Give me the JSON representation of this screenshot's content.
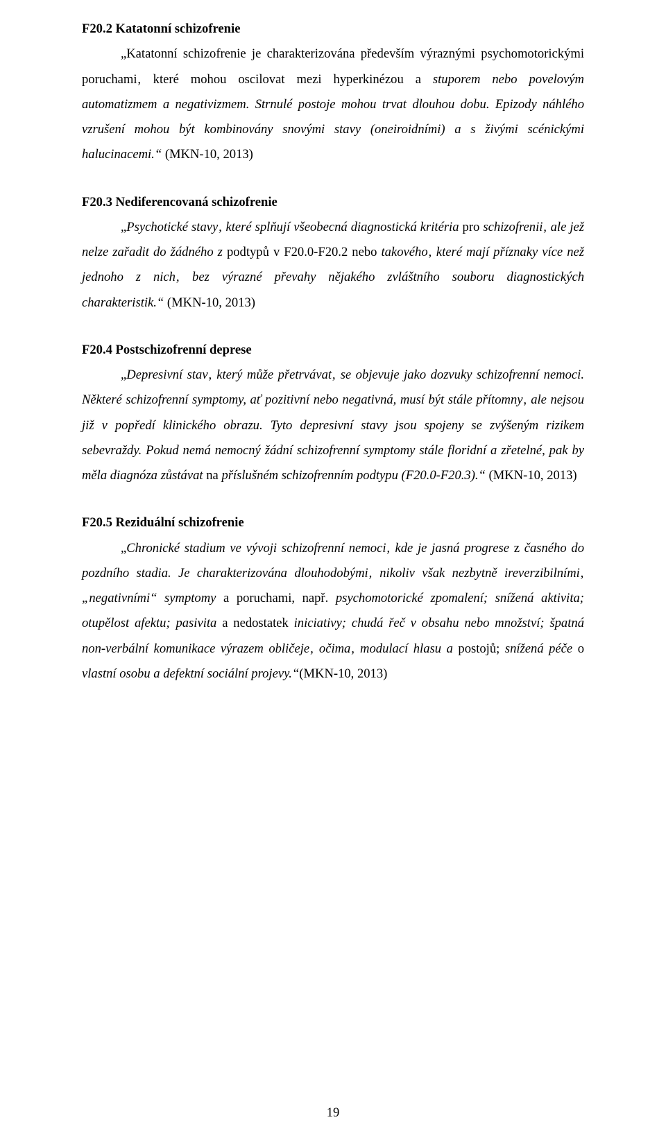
{
  "page_number": "19",
  "sections": [
    {
      "heading": "F20.2 Katatonní schizofrenie",
      "body_plain_start": "„Katatonní schizofrenie je charakterizována především výraznými psychomotorickými poruchami‚ které mohou oscilovat mezi hyperkinézou a ",
      "body_italic_1": "stuporem nebo povelovým automatizmem a negativizmem. Strnulé postoje mohou trvat dlouhou dobu. Epizody náhlého vzrušení mohou být kombinovány snovými stavy (oneiroidními) a s živými scénickými halucinacemi.“",
      "body_plain_end": " (MKN-10, 2013)"
    },
    {
      "heading": "F20.3 Nediferencovaná schizofrenie",
      "body_plain_start": "„",
      "body_italic_1": "Psychotické stavy‚ které splňují všeobecná diagnostická kritéria ",
      "body_plain_mid1": "pro ",
      "body_italic_2": "schizofrenii‚ ale jež nelze zařadit do žádného z ",
      "body_plain_mid2": "podtypů v F20.0-F20.2 nebo ",
      "body_italic_3": "takového‚ které mají příznaky více než jednoho z nich‚ bez výrazné převahy nějakého zvláštního souboru diagnostických charakteristik.“",
      "body_plain_end": " (MKN-10, 2013)"
    },
    {
      "heading": "F20.4 Postschizofrenní deprese",
      "body_plain_start": "„",
      "body_italic_1": "Depresivní stav‚ který může přetrvávat‚ se objevuje jako dozvuky schizofrenní nemoci. Některé schizofrenní symptomy, ať pozitivní nebo negativná, musí být stále přítomny‚ ale nejsou již v popředí klinického obrazu. Tyto depresivní stavy jsou spojeny se zvýšeným rizikem sebevraždy. Pokud nemá nemocný žádní schizofrenní symptomy stále floridní a zřetelné, pak by měla diagnóza zůstávat ",
      "body_plain_mid1": "na ",
      "body_italic_2": "příslušném schizofrenním podtypu (F20.0-F20.3).“",
      "body_plain_end": " (MKN-10, 2013)"
    },
    {
      "heading": "F20.5 Reziduální schizofrenie",
      "body_plain_start": "„",
      "body_italic_1": "Chronické stadium ve vývoji schizofrenní nemoci‚ kde je jasná progrese ",
      "body_plain_mid1": "z ",
      "body_italic_2": "časného do pozdního stadia. Je charakterizována dlouhodobými‚ nikoliv však nezbytně ireverzibilními‚ „negativními“ symptomy ",
      "body_plain_mid2": "a poruchami, např. ",
      "body_italic_3": "psychomotorické zpomalení; snížená aktivita; otupělost afektu; pasivita ",
      "body_plain_mid3": "a nedostatek ",
      "body_italic_4": "iniciativy; chudá řeč v obsahu nebo množství; špatná non-verbální komunikace výrazem obličeje‚ očima‚ modulací hlasu a ",
      "body_plain_mid4": "postojů; ",
      "body_italic_5": "snížená péče ",
      "body_plain_mid5": "o ",
      "body_italic_6": "vlastní osobu a defektní sociální projevy.“",
      "body_plain_end": "(MKN-10, 2013)"
    }
  ]
}
